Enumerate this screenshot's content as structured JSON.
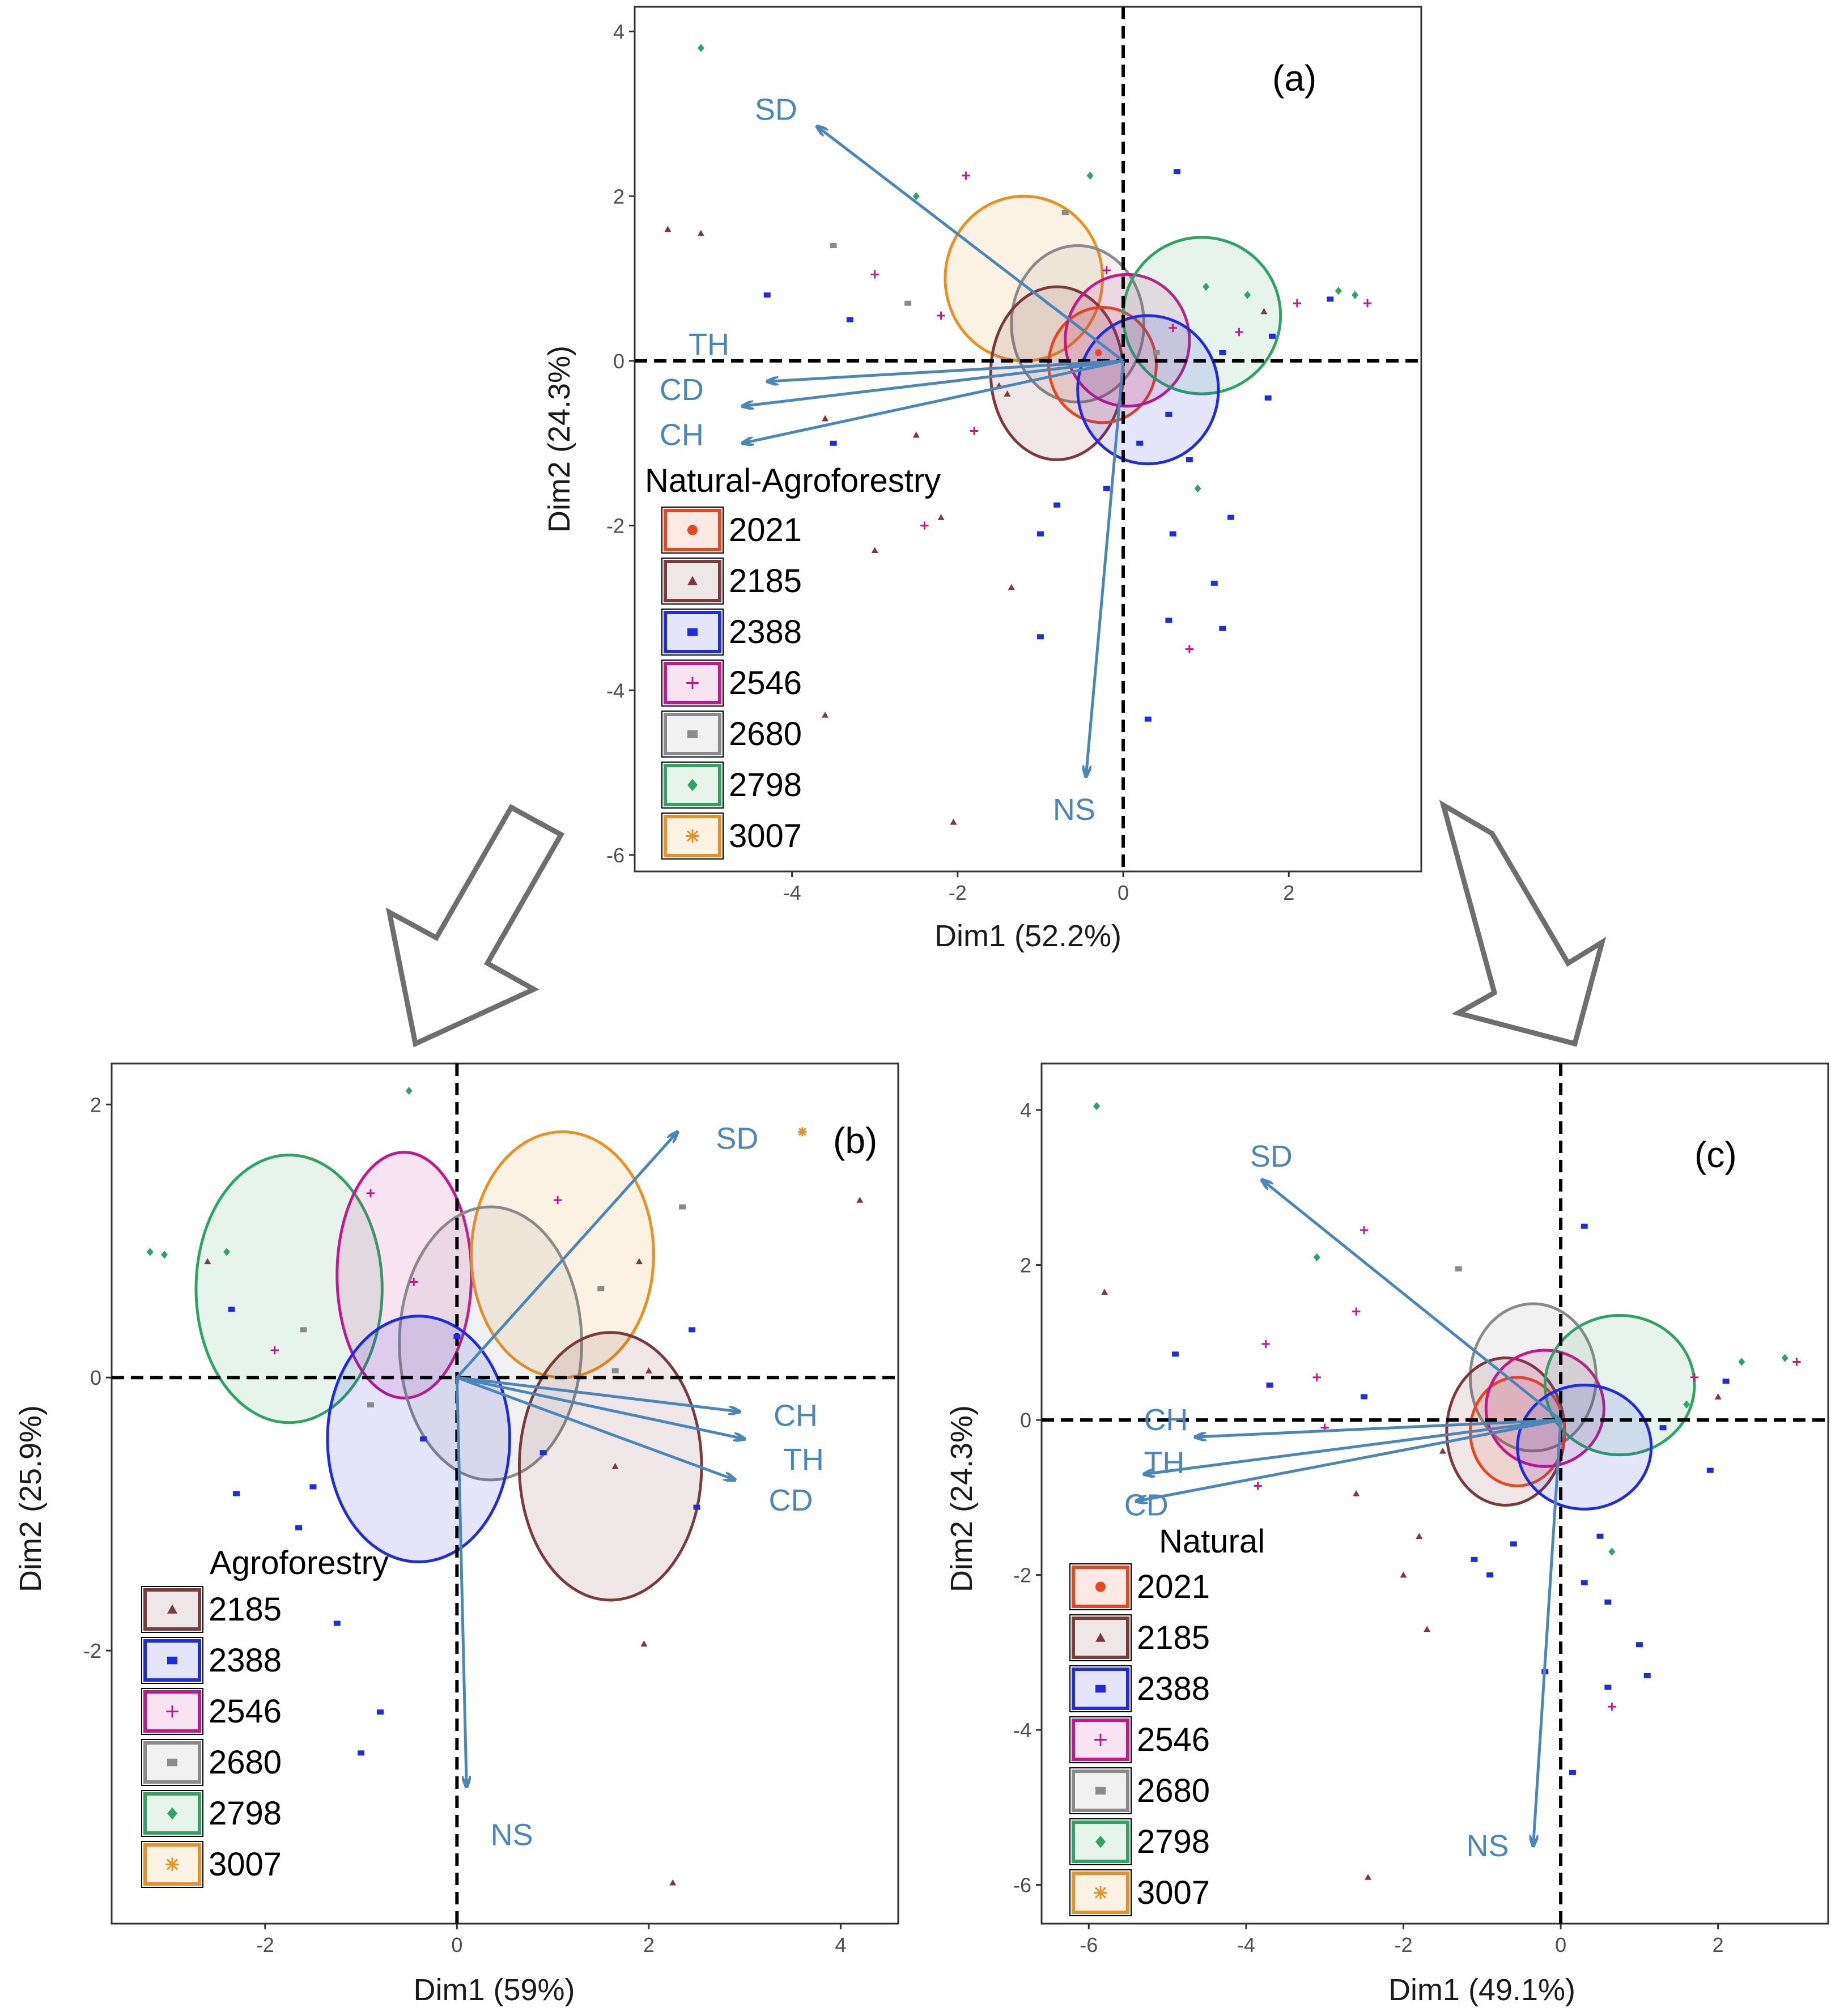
{
  "figure": {
    "arrows": [
      "left-down-arrow",
      "right-down-arrow"
    ]
  },
  "colors": {
    "2021": "#e8471e",
    "2185": "#7a3b3b",
    "2388": "#1f2be0",
    "2546": "#c2188a",
    "2680": "#8a8a8a",
    "2798": "#2fa362",
    "3007": "#e89020",
    "vector": "#4a86b8"
  },
  "chart_data": [
    {
      "id": "a",
      "type": "scatter",
      "panel_label": "(a)",
      "xlabel": "Dim1 (52.2%)",
      "ylabel": "Dim2 (24.3%)",
      "xlim": [
        -5.9,
        3.6
      ],
      "ylim": [
        -6.2,
        4.3
      ],
      "xticks": [
        -4,
        -2,
        0,
        2
      ],
      "yticks": [
        -6,
        -4,
        -2,
        0,
        2,
        4
      ],
      "legend_title": "Natural-Agroforestry",
      "legend_position": "bottom-left",
      "groups": [
        "2021",
        "2185",
        "2388",
        "2546",
        "2680",
        "2798",
        "3007"
      ],
      "ellipses": [
        {
          "group": "3007",
          "cx": -1.2,
          "cy": 1.0,
          "rx": 0.95,
          "ry": 1.0
        },
        {
          "group": "2680",
          "cx": -0.55,
          "cy": 0.45,
          "rx": 0.8,
          "ry": 0.95
        },
        {
          "group": "2185",
          "cx": -0.8,
          "cy": -0.15,
          "rx": 0.8,
          "ry": 1.05
        },
        {
          "group": "2021",
          "cx": -0.25,
          "cy": -0.05,
          "rx": 0.65,
          "ry": 0.7
        },
        {
          "group": "2546",
          "cx": 0.05,
          "cy": 0.25,
          "rx": 0.75,
          "ry": 0.8
        },
        {
          "group": "2798",
          "cx": 0.95,
          "cy": 0.55,
          "rx": 0.95,
          "ry": 0.95
        },
        {
          "group": "2388",
          "cx": 0.3,
          "cy": -0.35,
          "rx": 0.85,
          "ry": 0.9
        }
      ],
      "vectors": [
        {
          "label": "SD",
          "x": -3.7,
          "y": 2.85,
          "lx": -4.45,
          "ly": 3.05
        },
        {
          "label": "TH",
          "x": -4.3,
          "y": -0.25,
          "lx": -5.25,
          "ly": 0.2
        },
        {
          "label": "CD",
          "x": -4.6,
          "y": -0.55,
          "lx": -5.6,
          "ly": -0.35
        },
        {
          "label": "CH",
          "x": -4.6,
          "y": -1.0,
          "lx": -5.6,
          "ly": -0.9
        },
        {
          "label": "NS",
          "x": -0.45,
          "y": -5.05,
          "lx": -0.85,
          "ly": -5.45
        }
      ],
      "points": [
        {
          "g": "2798",
          "x": -5.1,
          "y": 3.8
        },
        {
          "g": "2546",
          "x": -1.9,
          "y": 2.25
        },
        {
          "g": "2798",
          "x": -0.4,
          "y": 2.25
        },
        {
          "g": "2798",
          "x": -2.5,
          "y": 2.0
        },
        {
          "g": "2185",
          "x": -5.5,
          "y": 1.6
        },
        {
          "g": "2185",
          "x": -5.1,
          "y": 1.55
        },
        {
          "g": "2680",
          "x": -3.5,
          "y": 1.4
        },
        {
          "g": "2546",
          "x": -3.0,
          "y": 1.05
        },
        {
          "g": "2388",
          "x": -4.3,
          "y": 0.8
        },
        {
          "g": "2388",
          "x": -3.3,
          "y": 0.5
        },
        {
          "g": "2680",
          "x": -2.6,
          "y": 0.7
        },
        {
          "g": "2546",
          "x": -2.2,
          "y": 0.55
        },
        {
          "g": "2388",
          "x": 0.65,
          "y": 2.3
        },
        {
          "g": "2680",
          "x": -0.7,
          "y": 1.8
        },
        {
          "g": "2546",
          "x": -0.2,
          "y": 1.1
        },
        {
          "g": "2798",
          "x": 1.0,
          "y": 0.9
        },
        {
          "g": "2798",
          "x": 1.5,
          "y": 0.8
        },
        {
          "g": "2798",
          "x": 2.6,
          "y": 0.85
        },
        {
          "g": "2798",
          "x": 2.8,
          "y": 0.8
        },
        {
          "g": "2546",
          "x": 2.1,
          "y": 0.7
        },
        {
          "g": "2388",
          "x": 2.5,
          "y": 0.75
        },
        {
          "g": "2546",
          "x": 2.95,
          "y": 0.7
        },
        {
          "g": "2388",
          "x": 1.8,
          "y": 0.3
        },
        {
          "g": "2185",
          "x": 1.7,
          "y": 0.6
        },
        {
          "g": "2388",
          "x": 1.2,
          "y": 0.1
        },
        {
          "g": "2546",
          "x": 0.6,
          "y": 0.4
        },
        {
          "g": "2680",
          "x": 0.4,
          "y": 0.1
        },
        {
          "g": "2021",
          "x": -0.3,
          "y": 0.1
        },
        {
          "g": "2185",
          "x": -1.5,
          "y": -0.3
        },
        {
          "g": "2185",
          "x": -3.6,
          "y": -0.7
        },
        {
          "g": "2546",
          "x": -1.8,
          "y": -0.85
        },
        {
          "g": "2185",
          "x": -2.5,
          "y": -0.9
        },
        {
          "g": "2388",
          "x": -3.5,
          "y": -1.0
        },
        {
          "g": "2185",
          "x": -1.4,
          "y": -0.4
        },
        {
          "g": "2388",
          "x": 1.75,
          "y": -0.45
        },
        {
          "g": "2388",
          "x": 0.8,
          "y": -1.2
        },
        {
          "g": "2798",
          "x": 0.9,
          "y": -1.55
        },
        {
          "g": "2388",
          "x": -0.2,
          "y": -1.55
        },
        {
          "g": "2388",
          "x": -0.8,
          "y": -1.75
        },
        {
          "g": "2185",
          "x": -2.2,
          "y": -1.9
        },
        {
          "g": "2388",
          "x": -1.0,
          "y": -2.1
        },
        {
          "g": "2546",
          "x": -2.4,
          "y": -2.0
        },
        {
          "g": "2185",
          "x": -3.0,
          "y": -2.3
        },
        {
          "g": "2388",
          "x": 0.6,
          "y": -2.1
        },
        {
          "g": "2388",
          "x": 1.3,
          "y": -1.9
        },
        {
          "g": "2388",
          "x": 1.1,
          "y": -2.7
        },
        {
          "g": "2185",
          "x": -1.35,
          "y": -2.75
        },
        {
          "g": "2388",
          "x": -1.0,
          "y": -3.35
        },
        {
          "g": "2388",
          "x": 0.55,
          "y": -3.15
        },
        {
          "g": "2388",
          "x": 1.2,
          "y": -3.25
        },
        {
          "g": "2546",
          "x": 0.8,
          "y": -3.5
        },
        {
          "g": "2388",
          "x": 0.3,
          "y": -4.35
        },
        {
          "g": "2185",
          "x": -3.6,
          "y": -4.3
        },
        {
          "g": "2185",
          "x": -2.05,
          "y": -5.6
        },
        {
          "g": "2388",
          "x": 0.2,
          "y": -1.0
        },
        {
          "g": "2388",
          "x": 0.55,
          "y": -0.65
        },
        {
          "g": "2546",
          "x": 1.4,
          "y": 0.35
        }
      ]
    },
    {
      "id": "b",
      "type": "scatter",
      "panel_label": "(b)",
      "xlabel": "Dim1 (59%)",
      "ylabel": "Dim2 (25.9%)",
      "xlim": [
        -3.6,
        4.6
      ],
      "ylim": [
        -4.0,
        2.3
      ],
      "xticks": [
        -2,
        0,
        2,
        4
      ],
      "yticks": [
        -2,
        0,
        2
      ],
      "legend_title": "Agroforestry",
      "legend_position": "bottom-left",
      "groups": [
        "2185",
        "2388",
        "2546",
        "2680",
        "2798",
        "3007"
      ],
      "ellipses": [
        {
          "group": "2798",
          "cx": -1.75,
          "cy": 0.65,
          "rx": 0.97,
          "ry": 0.98
        },
        {
          "group": "2546",
          "cx": -0.55,
          "cy": 0.75,
          "rx": 0.7,
          "ry": 0.9
        },
        {
          "group": "3007",
          "cx": 1.1,
          "cy": 0.9,
          "rx": 0.95,
          "ry": 0.9
        },
        {
          "group": "2680",
          "cx": 0.35,
          "cy": 0.25,
          "rx": 0.95,
          "ry": 1.0
        },
        {
          "group": "2388",
          "cx": -0.4,
          "cy": -0.45,
          "rx": 0.95,
          "ry": 0.9
        },
        {
          "group": "2185",
          "cx": 1.6,
          "cy": -0.65,
          "rx": 0.95,
          "ry": 0.98
        }
      ],
      "vectors": [
        {
          "label": "SD",
          "x": 2.3,
          "y": 1.8,
          "lx": 2.7,
          "ly": 1.75
        },
        {
          "label": "CH",
          "x": 2.95,
          "y": -0.25,
          "lx": 3.3,
          "ly": -0.28
        },
        {
          "label": "TH",
          "x": 3.0,
          "y": -0.45,
          "lx": 3.4,
          "ly": -0.6
        },
        {
          "label": "CD",
          "x": 2.9,
          "y": -0.75,
          "lx": 3.25,
          "ly": -0.9
        },
        {
          "label": "NS",
          "x": 0.1,
          "y": -3.0,
          "lx": 0.35,
          "ly": -3.35
        }
      ],
      "points": [
        {
          "g": "2798",
          "x": -0.5,
          "y": 2.1
        },
        {
          "g": "3007",
          "x": 3.6,
          "y": 1.8
        },
        {
          "g": "2185",
          "x": 4.2,
          "y": 1.3
        },
        {
          "g": "2680",
          "x": 2.35,
          "y": 1.25
        },
        {
          "g": "2546",
          "x": -0.9,
          "y": 1.35
        },
        {
          "g": "2546",
          "x": 1.05,
          "y": 1.3
        },
        {
          "g": "2798",
          "x": -3.2,
          "y": 0.92
        },
        {
          "g": "2798",
          "x": -3.05,
          "y": 0.9
        },
        {
          "g": "2798",
          "x": -2.4,
          "y": 0.92
        },
        {
          "g": "2185",
          "x": -2.6,
          "y": 0.85
        },
        {
          "g": "2546",
          "x": -0.45,
          "y": 0.7
        },
        {
          "g": "2680",
          "x": 1.5,
          "y": 0.65
        },
        {
          "g": "2185",
          "x": 1.9,
          "y": 0.85
        },
        {
          "g": "2388",
          "x": -2.35,
          "y": 0.5
        },
        {
          "g": "2546",
          "x": -1.9,
          "y": 0.2
        },
        {
          "g": "2680",
          "x": -1.6,
          "y": 0.35
        },
        {
          "g": "2388",
          "x": 0.0,
          "y": 0.3
        },
        {
          "g": "2680",
          "x": 1.65,
          "y": 0.05
        },
        {
          "g": "2185",
          "x": 2.0,
          "y": 0.05
        },
        {
          "g": "2388",
          "x": 2.45,
          "y": 0.35
        },
        {
          "g": "2680",
          "x": -0.9,
          "y": -0.2
        },
        {
          "g": "2388",
          "x": -0.35,
          "y": -0.45
        },
        {
          "g": "2185",
          "x": 1.65,
          "y": -0.65
        },
        {
          "g": "2388",
          "x": -2.3,
          "y": -0.85
        },
        {
          "g": "2388",
          "x": -1.5,
          "y": -0.8
        },
        {
          "g": "2388",
          "x": -1.65,
          "y": -1.1
        },
        {
          "g": "2388",
          "x": 2.5,
          "y": -0.95
        },
        {
          "g": "2388",
          "x": -1.25,
          "y": -1.8
        },
        {
          "g": "2388",
          "x": -0.8,
          "y": -2.45
        },
        {
          "g": "2388",
          "x": -1.0,
          "y": -2.75
        },
        {
          "g": "2185",
          "x": 1.95,
          "y": -1.95
        },
        {
          "g": "2185",
          "x": 2.25,
          "y": -3.7
        },
        {
          "g": "2388",
          "x": 0.9,
          "y": -0.55
        }
      ]
    },
    {
      "id": "c",
      "type": "scatter",
      "panel_label": "(c)",
      "xlabel": "Dim1 (49.1%)",
      "ylabel": "Dim2 (24.3%)",
      "xlim": [
        -6.6,
        3.4
      ],
      "ylim": [
        -6.5,
        4.6
      ],
      "xticks": [
        -6,
        -4,
        -2,
        0,
        2
      ],
      "yticks": [
        -6,
        -4,
        -2,
        0,
        2,
        4
      ],
      "legend_title": "Natural",
      "legend_position": "bottom-left",
      "groups": [
        "2021",
        "2185",
        "2388",
        "2546",
        "2680",
        "2798",
        "3007"
      ],
      "ellipses": [
        {
          "group": "2680",
          "cx": -0.35,
          "cy": 0.55,
          "rx": 0.8,
          "ry": 0.95
        },
        {
          "group": "2185",
          "cx": -0.7,
          "cy": -0.15,
          "rx": 0.75,
          "ry": 0.95
        },
        {
          "group": "2021",
          "cx": -0.55,
          "cy": -0.15,
          "rx": 0.6,
          "ry": 0.7
        },
        {
          "group": "2546",
          "cx": -0.2,
          "cy": 0.15,
          "rx": 0.75,
          "ry": 0.75
        },
        {
          "group": "2798",
          "cx": 0.75,
          "cy": 0.45,
          "rx": 0.95,
          "ry": 0.9
        },
        {
          "group": "2388",
          "cx": 0.3,
          "cy": -0.35,
          "rx": 0.85,
          "ry": 0.8
        }
      ],
      "vectors": [
        {
          "label": "SD",
          "x": -3.8,
          "y": 3.1,
          "lx": -3.95,
          "ly": 3.4
        },
        {
          "label": "CH",
          "x": -4.65,
          "y": -0.22,
          "lx": -5.3,
          "ly": 0.0
        },
        {
          "label": "TH",
          "x": -5.3,
          "y": -0.7,
          "lx": -5.3,
          "ly": -0.55
        },
        {
          "label": "CD",
          "x": -5.4,
          "y": -1.05,
          "lx": -5.55,
          "ly": -1.1
        },
        {
          "label": "NS",
          "x": -0.35,
          "y": -5.5,
          "lx": -1.2,
          "ly": -5.5
        }
      ],
      "points": [
        {
          "g": "2798",
          "x": -5.9,
          "y": 4.05
        },
        {
          "g": "2388",
          "x": 0.3,
          "y": 2.5
        },
        {
          "g": "2546",
          "x": -2.5,
          "y": 2.45
        },
        {
          "g": "2798",
          "x": -3.1,
          "y": 2.1
        },
        {
          "g": "2680",
          "x": -1.3,
          "y": 1.95
        },
        {
          "g": "2185",
          "x": -5.8,
          "y": 1.65
        },
        {
          "g": "2546",
          "x": -2.6,
          "y": 1.4
        },
        {
          "g": "2546",
          "x": -3.75,
          "y": 0.98
        },
        {
          "g": "2388",
          "x": -4.9,
          "y": 0.85
        },
        {
          "g": "2388",
          "x": -3.7,
          "y": 0.45
        },
        {
          "g": "2546",
          "x": -3.1,
          "y": 0.55
        },
        {
          "g": "2388",
          "x": -2.5,
          "y": 0.3
        },
        {
          "g": "2546",
          "x": 3.0,
          "y": 0.75
        },
        {
          "g": "2798",
          "x": 2.85,
          "y": 0.8
        },
        {
          "g": "2798",
          "x": 2.3,
          "y": 0.75
        },
        {
          "g": "2388",
          "x": 2.1,
          "y": 0.5
        },
        {
          "g": "2546",
          "x": 1.7,
          "y": 0.55
        },
        {
          "g": "2798",
          "x": 1.6,
          "y": 0.2
        },
        {
          "g": "2185",
          "x": 2.0,
          "y": 0.3
        },
        {
          "g": "2388",
          "x": 1.3,
          "y": -0.1
        },
        {
          "g": "2388",
          "x": 1.9,
          "y": -0.65
        },
        {
          "g": "2546",
          "x": -3.0,
          "y": -0.1
        },
        {
          "g": "2185",
          "x": -1.5,
          "y": -0.4
        },
        {
          "g": "2185",
          "x": -2.6,
          "y": -0.95
        },
        {
          "g": "2546",
          "x": -3.85,
          "y": -0.85
        },
        {
          "g": "2185",
          "x": -1.8,
          "y": -1.5
        },
        {
          "g": "2388",
          "x": -1.1,
          "y": -1.8
        },
        {
          "g": "2388",
          "x": -0.6,
          "y": -1.6
        },
        {
          "g": "2388",
          "x": 0.5,
          "y": -1.5
        },
        {
          "g": "2798",
          "x": 0.65,
          "y": -1.7
        },
        {
          "g": "2388",
          "x": -0.9,
          "y": -2.0
        },
        {
          "g": "2388",
          "x": 0.3,
          "y": -2.1
        },
        {
          "g": "2388",
          "x": 0.6,
          "y": -2.35
        },
        {
          "g": "2185",
          "x": -1.7,
          "y": -2.7
        },
        {
          "g": "2388",
          "x": 1.0,
          "y": -2.9
        },
        {
          "g": "2185",
          "x": -2.0,
          "y": -2.0
        },
        {
          "g": "2388",
          "x": -0.2,
          "y": -3.25
        },
        {
          "g": "2388",
          "x": 1.1,
          "y": -3.3
        },
        {
          "g": "2388",
          "x": 0.6,
          "y": -3.45
        },
        {
          "g": "2546",
          "x": 0.65,
          "y": -3.7
        },
        {
          "g": "2388",
          "x": 0.15,
          "y": -4.55
        },
        {
          "g": "2185",
          "x": -2.45,
          "y": -5.9
        }
      ]
    }
  ]
}
